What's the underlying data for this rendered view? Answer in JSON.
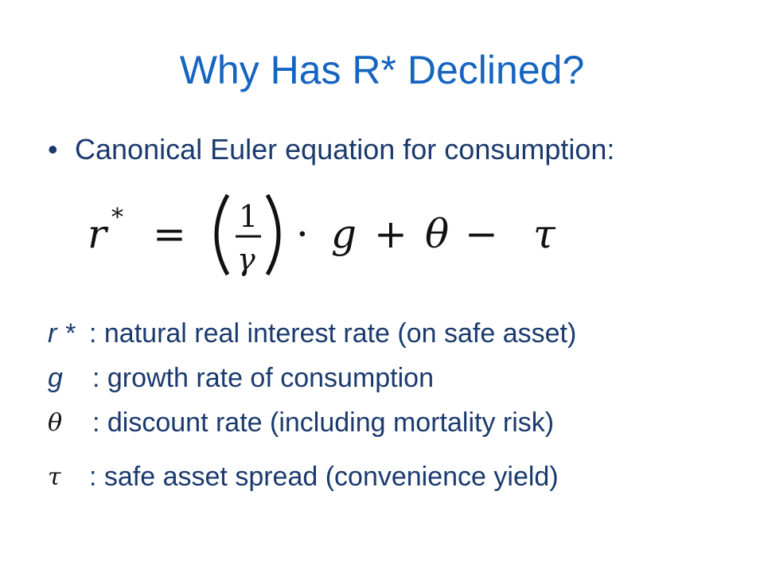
{
  "slide": {
    "title": "Why Has R* Declined?",
    "bullet": {
      "marker": "•",
      "text": "Canonical Euler equation for consumption:"
    },
    "equation": {
      "lhs": "r",
      "lhs_sup": "*",
      "equals": "=",
      "frac_num": "1",
      "frac_den": "γ",
      "dot": "·",
      "g": "g",
      "plus": "+",
      "theta": "θ",
      "minus": "−",
      "tau": "τ"
    },
    "definitions": [
      {
        "symbol": "r *",
        "text": ": natural real interest rate (on safe asset)"
      },
      {
        "symbol": "g",
        "text": ": growth rate of consumption"
      },
      {
        "symbol": "θ",
        "text": ": discount rate (including mortality risk)"
      },
      {
        "symbol": "τ",
        "text": ": safe asset spread (convenience yield)"
      }
    ]
  },
  "colors": {
    "title": "#1565c0",
    "body_text": "#1a3a6e",
    "math": "#111111",
    "background": "#ffffff"
  }
}
